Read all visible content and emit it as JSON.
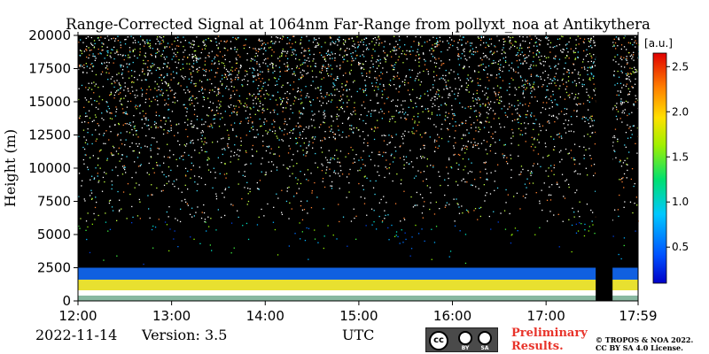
{
  "chart_data": {
    "type": "heatmap",
    "title": "Range-Corrected Signal at 1064nm Far-Range from pollyxt_noa at Antikythera",
    "xlabel": "",
    "ylabel": "Height (m)",
    "x_ticks": [
      "12:00",
      "13:00",
      "14:00",
      "15:00",
      "16:00",
      "17:00",
      "17:59"
    ],
    "x_tick_hours": [
      12.0,
      13.0,
      14.0,
      15.0,
      16.0,
      17.0,
      17.983
    ],
    "xlim": [
      12.0,
      17.983
    ],
    "y_ticks": [
      "0",
      "2500",
      "5000",
      "7500",
      "10000",
      "12500",
      "15000",
      "17500",
      "20000"
    ],
    "ylim": [
      0,
      20000
    ],
    "colorbar": {
      "label": "[a.u.]",
      "ticks": [
        "0.5",
        "1.0",
        "1.5",
        "2.0",
        "2.5"
      ],
      "range": [
        0.1,
        2.65
      ],
      "colormap": "jet"
    },
    "features": {
      "background_color": "#000000",
      "no_data_gap_hours": [
        17.53,
        17.71
      ],
      "surface_layer_height_m": [
        800,
        1600
      ],
      "boundary_layer_top_m": 2500,
      "sparse_signal_above_m": 5000
    }
  },
  "footer": {
    "date": "2022-11-14",
    "version": "Version: 3.5",
    "timezone": "UTC",
    "preliminary_line1": "Preliminary",
    "preliminary_line2": "Results.",
    "copyright_line1": "© TROPOS & NOA 2022.",
    "copyright_line2": "CC BY SA 4.0 License.",
    "license_cc": "cc",
    "license_by": "BY",
    "license_sa": "SA"
  }
}
